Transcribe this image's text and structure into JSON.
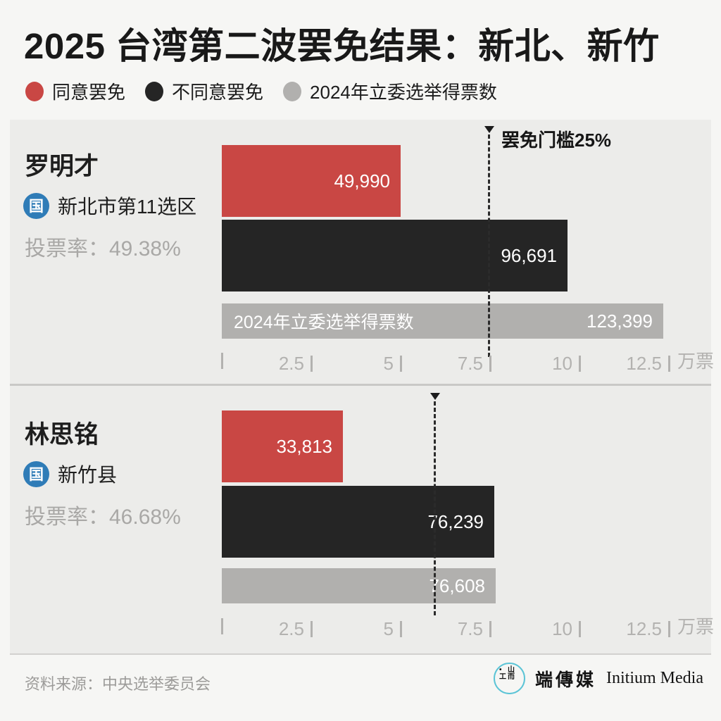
{
  "title": "2025 台湾第二波罢免结果：新北、新竹",
  "legend": {
    "agree": {
      "label": "同意罢免",
      "color": "#C94744"
    },
    "disagree": {
      "label": "不同意罢免",
      "color": "#252525"
    },
    "election2024": {
      "label": "2024年立委选举得票数",
      "color": "#B1B0AE"
    }
  },
  "axis": {
    "ticks": [
      "",
      "2.5",
      "5",
      "7.5",
      "10",
      "12.5"
    ],
    "tick_values": [
      0,
      2.5,
      5,
      7.5,
      10,
      12.5
    ],
    "max": 12.5,
    "unit": "万票"
  },
  "party_badge_color": "#2F7CB7",
  "panels": [
    {
      "name": "罗明才",
      "party_badge": "国",
      "district": "新北市第11选区",
      "turnout": "投票率：49.38%",
      "threshold_wan": 7.48,
      "threshold_label": "罢免门槛25%",
      "bars": {
        "agree": {
          "value": 49990,
          "label": "49,990"
        },
        "disagree": {
          "value": 96691,
          "label": "96,691"
        },
        "election2024": {
          "value": 123399,
          "label": "123,399",
          "inline_label": "2024年立委选举得票数"
        }
      }
    },
    {
      "name": "林思铭",
      "party_badge": "国",
      "district": "新竹县",
      "turnout": "投票率：46.68%",
      "threshold_wan": 5.96,
      "bars": {
        "agree": {
          "value": 33813,
          "label": "33,813"
        },
        "disagree": {
          "value": 76239,
          "label": "76,239"
        },
        "election2024": {
          "value": 76608,
          "label": "76,608"
        }
      }
    }
  ],
  "footer": {
    "source": "资料来源：中央选举委员会",
    "brand_cjk": "端傳媒",
    "brand_en": "Initium Media",
    "logo_glyphs": [
      "•",
      "山",
      "工",
      "而"
    ]
  },
  "chart_data": {
    "type": "bar",
    "orientation": "horizontal",
    "title": "2025 台湾第二波罢免结果：新北、新竹",
    "legend": [
      "同意罢免",
      "不同意罢免",
      "2024年立委选举得票数"
    ],
    "x_axis": {
      "tick_values_wan": [
        0,
        2.5,
        5,
        7.5,
        10,
        12.5
      ],
      "xlim_wan": [
        0,
        12.5
      ],
      "unit_label": "万票"
    },
    "grid": false,
    "groups": [
      {
        "name": "罗明才",
        "party": "国",
        "district": "新北市第11选区",
        "turnout_pct": 49.38,
        "series": {
          "同意罢免": 49990,
          "不同意罢免": 96691,
          "2024年立委选举得票数": 123399
        },
        "threshold_line_wan": 7.48,
        "threshold_annotation": "罢免门槛25%"
      },
      {
        "name": "林思铭",
        "party": "国",
        "district": "新竹县",
        "turnout_pct": 46.68,
        "series": {
          "同意罢免": 33813,
          "不同意罢免": 76239,
          "2024年立委选举得票数": 76608
        },
        "threshold_line_wan": 5.96,
        "threshold_annotation": null
      }
    ],
    "source": "资料来源：中央选举委员会"
  }
}
